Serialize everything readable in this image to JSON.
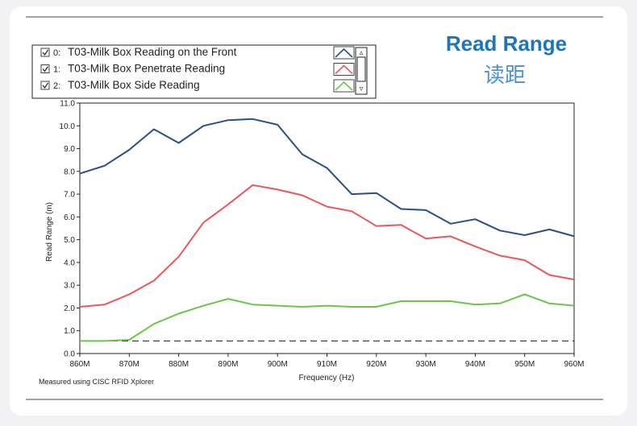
{
  "header": {
    "title": "Read Range",
    "subtitle": "读距"
  },
  "footer": {
    "note": "Measured using CISC RFID Xplorer"
  },
  "legend": {
    "items": [
      {
        "index": "0:",
        "label": "T03-Milk Box Reading on the Front",
        "checked": true
      },
      {
        "index": "1:",
        "label": "T03-Milk Box Penetrate Reading",
        "checked": true
      },
      {
        "index": "2:",
        "label": "T03-Milk Box Side Reading",
        "checked": true
      }
    ],
    "scroll_up": "▵",
    "scroll_down": "▿"
  },
  "colors": {
    "title": "#1f75bb",
    "subtitle": "#4a90d9",
    "series": [
      "#2d4d86",
      "#e8575e",
      "#6cc54a"
    ],
    "threshold": "#333333"
  },
  "chart_data": {
    "type": "line",
    "xlabel": "Frequency (Hz)",
    "ylabel": "Read Range (m)",
    "ylim": [
      0,
      11
    ],
    "xlim": [
      860,
      960
    ],
    "x_ticks": [
      860,
      870,
      880,
      890,
      900,
      910,
      920,
      930,
      940,
      950,
      960
    ],
    "x_tick_labels": [
      "860M",
      "870M",
      "880M",
      "890M",
      "900M",
      "910M",
      "920M",
      "930M",
      "940M",
      "950M",
      "960M"
    ],
    "y_ticks": [
      0,
      1,
      2,
      3,
      4,
      5,
      6,
      7,
      8,
      9,
      10,
      11
    ],
    "y_tick_labels": [
      "0.0",
      "1.0",
      "2.0",
      "3.0",
      "4.0",
      "5.0",
      "6.0",
      "7.0",
      "8.0",
      "9.0",
      "10.0",
      "11.0"
    ],
    "x": [
      860,
      865,
      870,
      875,
      880,
      885,
      890,
      895,
      900,
      905,
      910,
      915,
      920,
      925,
      930,
      935,
      940,
      945,
      950,
      955,
      960
    ],
    "series": [
      {
        "name": "T03-Milk Box Reading on the Front",
        "values": [
          7.9,
          8.25,
          8.95,
          9.85,
          9.25,
          10.0,
          10.25,
          10.3,
          10.05,
          8.75,
          8.15,
          7.0,
          7.05,
          6.35,
          6.3,
          5.7,
          5.9,
          5.4,
          5.2,
          5.45,
          5.15
        ]
      },
      {
        "name": "T03-Milk Box Penetrate Reading",
        "values": [
          2.05,
          2.15,
          2.6,
          3.2,
          4.25,
          5.75,
          6.55,
          7.4,
          7.2,
          6.95,
          6.45,
          6.25,
          5.6,
          5.65,
          5.05,
          5.15,
          4.7,
          4.3,
          4.1,
          3.45,
          3.25
        ]
      },
      {
        "name": "T03-Milk Box Side Reading",
        "values": [
          0.55,
          0.55,
          0.6,
          1.3,
          1.75,
          2.1,
          2.4,
          2.15,
          2.1,
          2.05,
          2.1,
          2.05,
          2.05,
          2.3,
          2.3,
          2.3,
          2.15,
          2.2,
          2.6,
          2.2,
          2.1
        ]
      }
    ],
    "threshold": 0.55,
    "grid": false,
    "legend_position": "top-left"
  }
}
